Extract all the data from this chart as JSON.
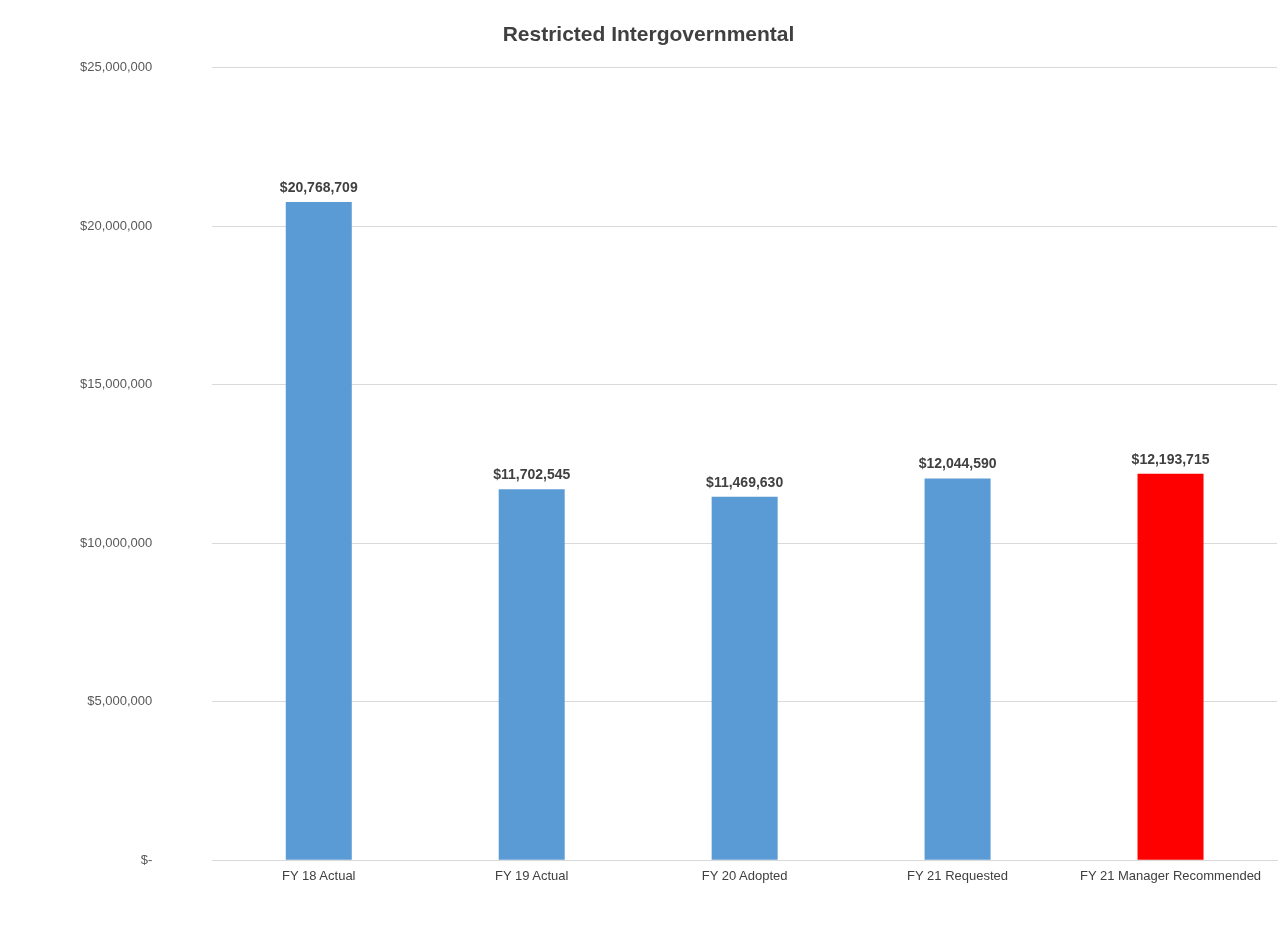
{
  "chart_data": {
    "type": "bar",
    "title": "Restricted Intergovernmental",
    "categories": [
      "FY 18 Actual",
      "FY 19 Actual",
      "FY 20 Adopted",
      "FY 21 Requested",
      "FY 21 Manager Recommended"
    ],
    "values": [
      20768709,
      11702545,
      11469630,
      12044590,
      12193715
    ],
    "colors": [
      "#5b9bd5",
      "#5b9bd5",
      "#5b9bd5",
      "#5b9bd5",
      "#ff0000"
    ],
    "value_labels": [
      "$20,768,709",
      "$11,702,545",
      "$11,469,630",
      "$12,044,590",
      "$12,193,715"
    ],
    "ylim": [
      0,
      25000000
    ],
    "yticks": [
      {
        "value": 0,
        "label": "$-"
      },
      {
        "value": 5000000,
        "label": "$5,000,000"
      },
      {
        "value": 10000000,
        "label": "$10,000,000"
      },
      {
        "value": 15000000,
        "label": "$15,000,000"
      },
      {
        "value": 20000000,
        "label": "$20,000,000"
      },
      {
        "value": 25000000,
        "label": "$25,000,000"
      }
    ],
    "grid": "y",
    "legend": false
  }
}
